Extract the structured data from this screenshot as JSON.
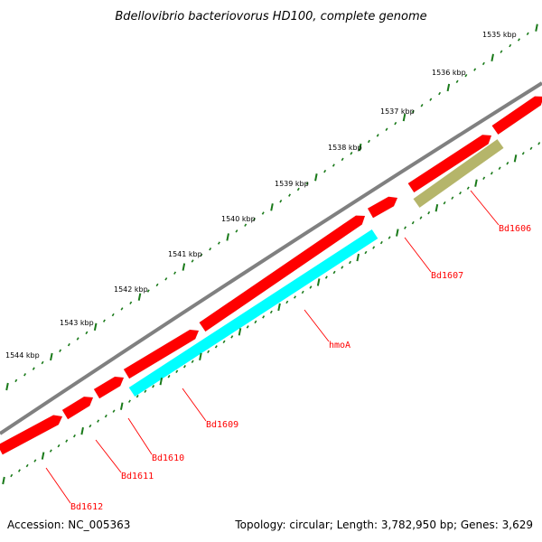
{
  "title": "Bdellovibrio bacteriovorus HD100, complete genome",
  "footer": {
    "accession": "Accession: NC_005363",
    "summary": "Topology: circular; Length: 3,782,950 bp; Genes: 3,629"
  },
  "colors": {
    "backbone": "#808080",
    "gene_forward": "#ff0000",
    "gene_cyan": "#00ffff",
    "gene_olive": "#b5b56a",
    "ruler_tick": "#1a7a1a",
    "label_line": "#ff0000"
  },
  "scale_labels": [
    "1535 kbp",
    "1536 kbp",
    "1537 kbp",
    "1538 kbp",
    "1539 kbp",
    "1540 kbp",
    "1541 kbp",
    "1542 kbp",
    "1543 kbp",
    "1544 kbp"
  ],
  "genes": [
    {
      "label": "Bd1606",
      "color": "olive"
    },
    {
      "label": "Bd1607",
      "color": "red"
    },
    {
      "label": "hmoA",
      "color": "cyan"
    },
    {
      "label": "Bd1609",
      "color": "cyan"
    },
    {
      "label": "Bd1610",
      "color": "red"
    },
    {
      "label": "Bd1611",
      "color": "red"
    },
    {
      "label": "Bd1612",
      "color": "red"
    }
  ]
}
